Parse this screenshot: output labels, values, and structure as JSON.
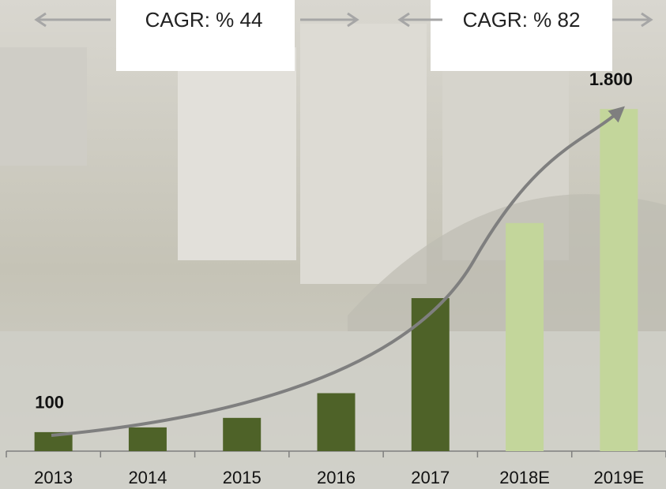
{
  "chart_data": {
    "type": "bar",
    "categories": [
      "2013",
      "2014",
      "2015",
      "2016",
      "2017",
      "2018E",
      "2019E"
    ],
    "values": [
      100,
      125,
      175,
      305,
      805,
      1200,
      1800
    ],
    "value_labels": [
      "100",
      null,
      null,
      null,
      null,
      null,
      "1.800"
    ],
    "colors": [
      "#4e6228",
      "#4e6228",
      "#4e6228",
      "#4e6228",
      "#4e6228",
      "#c3d69b",
      "#c3d69b"
    ],
    "ylim": [
      0,
      2000
    ],
    "annotations": [
      "CAGR: % 44",
      "CAGR: % 82"
    ]
  }
}
